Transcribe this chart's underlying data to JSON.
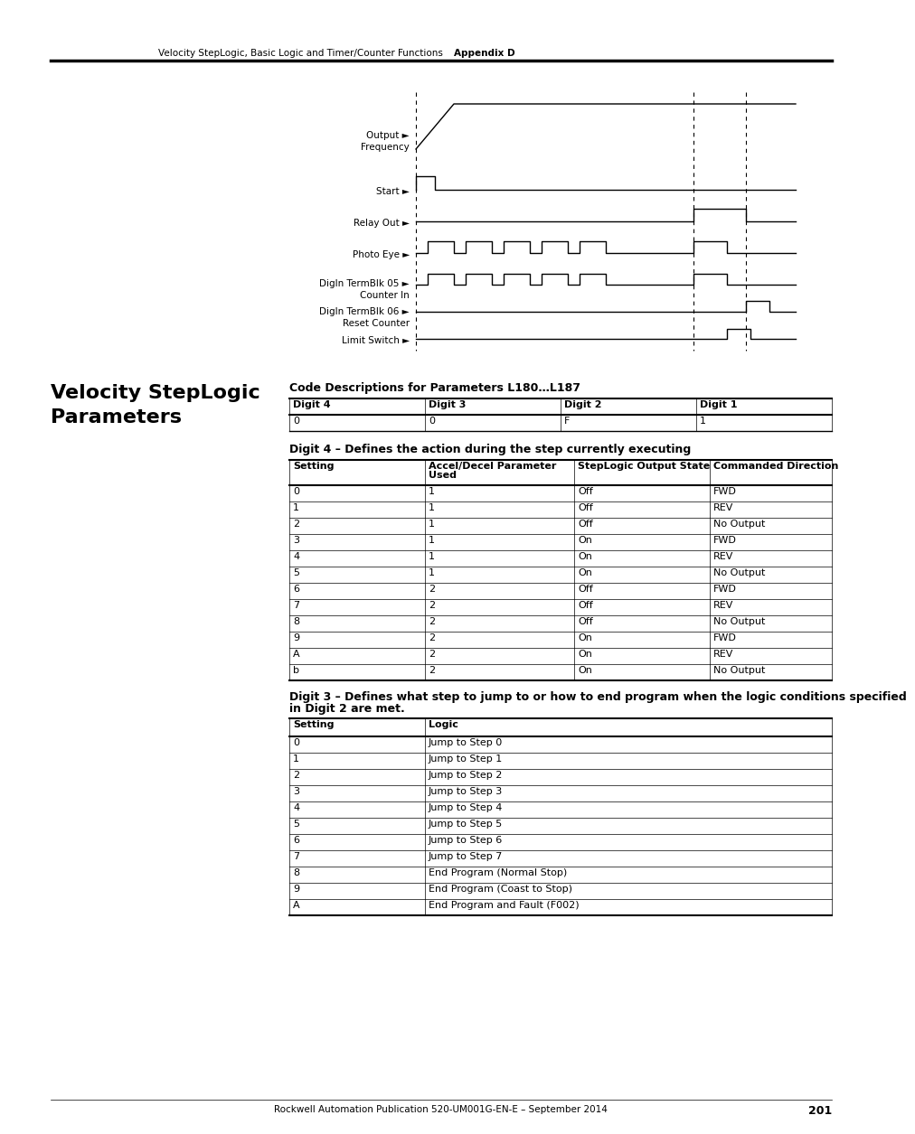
{
  "page_header_text": "Velocity StepLogic, Basic Logic and Timer/Counter Functions",
  "page_header_bold": "Appendix D",
  "page_number": "201",
  "footer_text": "Rockwell Automation Publication 520-UM001G-EN-E – September 2014",
  "section_title_line1": "Velocity StepLogic",
  "section_title_line2": "Parameters",
  "code_desc_title": "Code Descriptions for Parameters L180…L187",
  "digit_table_headers": [
    "Digit 4",
    "Digit 3",
    "Digit 2",
    "Digit 1"
  ],
  "digit_table_row": [
    "0",
    "0",
    "F",
    "1"
  ],
  "digit4_title": "Digit 4 – Defines the action during the step currently executing",
  "digit4_headers": [
    "Setting",
    "Accel/Decel Parameter\nUsed",
    "StepLogic Output State",
    "Commanded Direction"
  ],
  "digit4_rows": [
    [
      "0",
      "1",
      "Off",
      "FWD"
    ],
    [
      "1",
      "1",
      "Off",
      "REV"
    ],
    [
      "2",
      "1",
      "Off",
      "No Output"
    ],
    [
      "3",
      "1",
      "On",
      "FWD"
    ],
    [
      "4",
      "1",
      "On",
      "REV"
    ],
    [
      "5",
      "1",
      "On",
      "No Output"
    ],
    [
      "6",
      "2",
      "Off",
      "FWD"
    ],
    [
      "7",
      "2",
      "Off",
      "REV"
    ],
    [
      "8",
      "2",
      "Off",
      "No Output"
    ],
    [
      "9",
      "2",
      "On",
      "FWD"
    ],
    [
      "A",
      "2",
      "On",
      "REV"
    ],
    [
      "b",
      "2",
      "On",
      "No Output"
    ]
  ],
  "digit3_title_line1": "Digit 3 – Defines what step to jump to or how to end program when the logic conditions specified",
  "digit3_title_line2": "in Digit 2 are met.",
  "digit3_headers": [
    "Setting",
    "Logic"
  ],
  "digit3_rows": [
    [
      "0",
      "Jump to Step 0"
    ],
    [
      "1",
      "Jump to Step 1"
    ],
    [
      "2",
      "Jump to Step 2"
    ],
    [
      "3",
      "Jump to Step 3"
    ],
    [
      "4",
      "Jump to Step 4"
    ],
    [
      "5",
      "Jump to Step 5"
    ],
    [
      "6",
      "Jump to Step 6"
    ],
    [
      "7",
      "Jump to Step 7"
    ],
    [
      "8",
      "End Program (Normal Stop)"
    ],
    [
      "9",
      "End Program (Coast to Stop)"
    ],
    [
      "A",
      "End Program and Fault (F002)"
    ]
  ],
  "bg_color": "#ffffff"
}
